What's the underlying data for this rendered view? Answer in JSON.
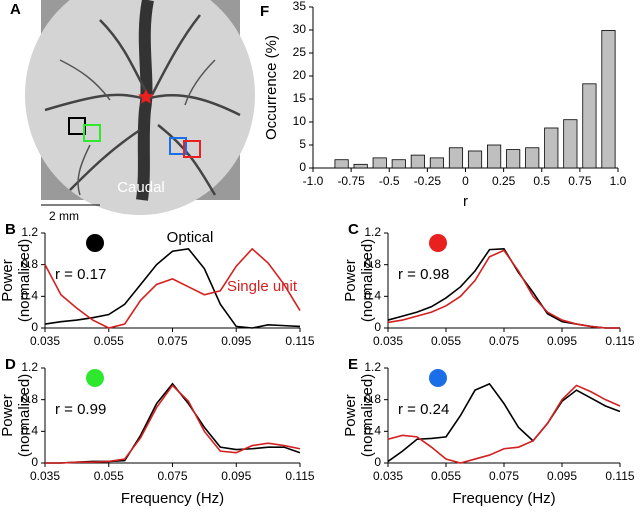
{
  "panel_a": {
    "label": "A",
    "caption": "Caudal",
    "scale_bar": "2 mm"
  },
  "chart_data": [
    {
      "type": "histogram",
      "label": "F",
      "xlabel": "r",
      "ylabel": "Occurrence (%)",
      "bins": [
        -1,
        -0.875,
        -0.75,
        -0.625,
        -0.5,
        -0.375,
        -0.25,
        -0.125,
        0,
        0.125,
        0.25,
        0.375,
        0.5,
        0.625,
        0.75,
        0.875,
        1
      ],
      "values": [
        0,
        1.8,
        0.8,
        2.2,
        1.8,
        2.8,
        2.2,
        4.4,
        3.7,
        5.0,
        4.0,
        4.4,
        8.7,
        10.5,
        18.3,
        29.9
      ],
      "color": "#bfbfbf",
      "xlim": [
        -1,
        1
      ],
      "xticks": [
        {
          "value": -1,
          "label": "-1.0"
        },
        -0.75,
        -0.5,
        -0.25,
        0,
        0.25,
        0.5,
        0.75,
        {
          "value": 1,
          "label": "1.0"
        }
      ],
      "ylim": [
        0,
        35
      ],
      "yticks": [
        0,
        5,
        10,
        15,
        20,
        25,
        30,
        35
      ]
    },
    {
      "type": "line",
      "label": "B",
      "annotation": "r = 0.17",
      "marker_color": "#000000",
      "ylabel": [
        "Power",
        "(normalized)"
      ],
      "x": [
        0.035,
        0.04,
        0.045,
        0.05,
        0.055,
        0.06,
        0.065,
        0.07,
        0.075,
        0.08,
        0.085,
        0.09,
        0.095,
        0.1,
        0.105,
        0.11,
        0.115
      ],
      "series": [
        {
          "name": "Optical",
          "color": "#000000",
          "values": [
            0.05,
            0.08,
            0.1,
            0.13,
            0.17,
            0.3,
            0.55,
            0.8,
            0.97,
            1.0,
            0.75,
            0.3,
            0.02,
            0.0,
            0.04,
            0.03,
            0.02
          ]
        },
        {
          "name": "Single unit",
          "color": "#d42020",
          "values": [
            0.8,
            0.42,
            0.25,
            0.1,
            0.0,
            0.05,
            0.35,
            0.55,
            0.62,
            0.52,
            0.42,
            0.47,
            0.78,
            1.0,
            0.82,
            0.55,
            0.22
          ]
        }
      ],
      "xlim": [
        0.035,
        0.115
      ],
      "xticks": [
        0.035,
        0.055,
        0.075,
        0.095,
        0.115
      ],
      "ylim": [
        0,
        1.2
      ],
      "yticks": [
        0,
        0.4,
        0.8,
        1.2
      ]
    },
    {
      "type": "line",
      "label": "C",
      "annotation": "r = 0.98",
      "marker_color": "#e8201f",
      "ylabel": [
        "Power",
        "(normalized)"
      ],
      "x": [
        0.035,
        0.04,
        0.045,
        0.05,
        0.055,
        0.06,
        0.065,
        0.07,
        0.075,
        0.08,
        0.085,
        0.09,
        0.095,
        0.1,
        0.105,
        0.11,
        0.115
      ],
      "series": [
        {
          "color": "#000000",
          "values": [
            0.1,
            0.15,
            0.2,
            0.27,
            0.38,
            0.52,
            0.72,
            0.99,
            1.0,
            0.7,
            0.45,
            0.18,
            0.08,
            0.05,
            0.02,
            0.0,
            0.0
          ]
        },
        {
          "color": "#d42020",
          "values": [
            0.07,
            0.1,
            0.15,
            0.2,
            0.28,
            0.4,
            0.6,
            0.9,
            0.98,
            0.72,
            0.4,
            0.2,
            0.1,
            0.05,
            0.02,
            0.0,
            0.0
          ]
        }
      ],
      "xlim": [
        0.035,
        0.115
      ],
      "xticks": [
        0.035,
        0.055,
        0.075,
        0.095,
        0.115
      ],
      "ylim": [
        0,
        1.2
      ],
      "yticks": [
        0,
        0.4,
        0.8,
        1.2
      ]
    },
    {
      "type": "line",
      "label": "D",
      "annotation": "r = 0.99",
      "marker_color": "#2ee82e",
      "ylabel": [
        "Power",
        "(normalized)"
      ],
      "xlabel": "Frequency (Hz)",
      "x": [
        0.035,
        0.04,
        0.045,
        0.05,
        0.055,
        0.06,
        0.065,
        0.07,
        0.075,
        0.08,
        0.085,
        0.09,
        0.095,
        0.1,
        0.105,
        0.11,
        0.115
      ],
      "series": [
        {
          "color": "#000000",
          "values": [
            0,
            0,
            0.01,
            0.02,
            0.02,
            0.03,
            0.35,
            0.75,
            1.0,
            0.75,
            0.45,
            0.2,
            0.17,
            0.18,
            0.2,
            0.2,
            0.13
          ]
        },
        {
          "color": "#d42020",
          "values": [
            0,
            0,
            0.01,
            0.01,
            0.02,
            0.05,
            0.32,
            0.7,
            0.98,
            0.78,
            0.4,
            0.15,
            0.13,
            0.22,
            0.25,
            0.22,
            0.18
          ]
        }
      ],
      "xlim": [
        0.035,
        0.115
      ],
      "xticks": [
        0.035,
        0.055,
        0.075,
        0.095,
        0.115
      ],
      "ylim": [
        0,
        1.2
      ],
      "yticks": [
        0,
        0.4,
        0.8,
        1.2
      ]
    },
    {
      "type": "line",
      "label": "E",
      "annotation": "r = 0.24",
      "marker_color": "#1a6fe8",
      "ylabel": [
        "Power",
        "(normalized)"
      ],
      "xlabel": "Frequency (Hz)",
      "x": [
        0.035,
        0.04,
        0.045,
        0.05,
        0.055,
        0.06,
        0.065,
        0.07,
        0.075,
        0.08,
        0.085,
        0.09,
        0.095,
        0.1,
        0.105,
        0.11,
        0.115
      ],
      "series": [
        {
          "color": "#000000",
          "values": [
            0.02,
            0.15,
            0.3,
            0.31,
            0.33,
            0.6,
            0.92,
            1.0,
            0.75,
            0.45,
            0.28,
            0.5,
            0.78,
            0.92,
            0.82,
            0.72,
            0.65
          ]
        },
        {
          "color": "#d42020",
          "values": [
            0.3,
            0.35,
            0.33,
            0.2,
            0.05,
            0.0,
            0.05,
            0.1,
            0.18,
            0.2,
            0.28,
            0.5,
            0.8,
            0.98,
            0.9,
            0.8,
            0.72
          ]
        }
      ],
      "xlim": [
        0.035,
        0.115
      ],
      "xticks": [
        0.035,
        0.055,
        0.075,
        0.095,
        0.115
      ],
      "ylim": [
        0,
        1.2
      ],
      "yticks": [
        0,
        0.4,
        0.8,
        1.2
      ]
    }
  ]
}
